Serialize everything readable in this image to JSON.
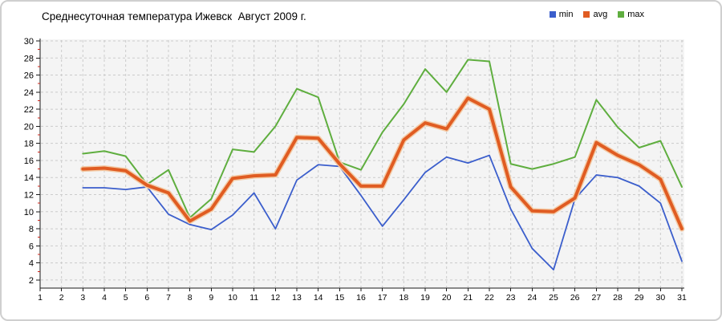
{
  "card": {
    "title": "Среднесуточная температура Ижевск  Август 2009 г."
  },
  "legend": [
    {
      "id": "min",
      "label": "min",
      "color": "#3b5ecc"
    },
    {
      "id": "avg",
      "label": "avg",
      "color": "#e05c22"
    },
    {
      "id": "max",
      "label": "max",
      "color": "#5fae3f"
    }
  ],
  "colors": {
    "plot_background": "#f4f4f4",
    "gridline": "#cbcbcb",
    "axis": "#1a1a1a",
    "minor_tick_red": "#cc2418",
    "avg_halo": "#f3cba6"
  },
  "chart_data": {
    "type": "line",
    "title": "Среднесуточная температура Ижевск  Август 2009 г.",
    "xlabel": "",
    "ylabel": "",
    "x": [
      3,
      4,
      5,
      6,
      7,
      8,
      9,
      10,
      11,
      12,
      13,
      14,
      15,
      16,
      17,
      18,
      19,
      20,
      21,
      22,
      23,
      24,
      25,
      26,
      27,
      28,
      29,
      30,
      31
    ],
    "x_ticks": [
      1,
      2,
      3,
      4,
      5,
      6,
      7,
      8,
      9,
      10,
      11,
      12,
      13,
      14,
      15,
      16,
      17,
      18,
      19,
      20,
      21,
      22,
      23,
      24,
      25,
      26,
      27,
      28,
      29,
      30,
      31
    ],
    "y_ticks": [
      2,
      4,
      6,
      8,
      10,
      12,
      14,
      16,
      18,
      20,
      22,
      24,
      26,
      28,
      30
    ],
    "y_minor_ticks": [
      3,
      5,
      7,
      9,
      11,
      13,
      15,
      17,
      19,
      21,
      23,
      25,
      27,
      29
    ],
    "xlim": [
      1,
      31
    ],
    "ylim": [
      1,
      30
    ],
    "grid": "dashed",
    "legend_position": "top-right",
    "series": [
      {
        "name": "min",
        "color": "#3b5ecc",
        "values": [
          12.8,
          12.8,
          12.6,
          12.9,
          9.7,
          8.5,
          7.9,
          9.6,
          12.2,
          8.0,
          13.7,
          15.5,
          15.3,
          11.9,
          8.3,
          11.4,
          14.6,
          16.4,
          15.7,
          16.6,
          10.3,
          5.7,
          3.2,
          11.5,
          14.3,
          14.0,
          13.0,
          11.0,
          4.2
        ]
      },
      {
        "name": "avg",
        "color": "#e05c22",
        "values": [
          15.0,
          15.1,
          14.8,
          13.1,
          12.2,
          8.9,
          10.3,
          13.9,
          14.2,
          14.3,
          18.7,
          18.6,
          15.6,
          13.0,
          13.0,
          18.4,
          20.4,
          19.7,
          23.3,
          22.0,
          12.9,
          10.1,
          10.0,
          11.6,
          18.1,
          16.6,
          15.5,
          13.8,
          8.0
        ]
      },
      {
        "name": "max",
        "color": "#5fae3f",
        "values": [
          16.8,
          17.1,
          16.5,
          13.2,
          14.9,
          9.3,
          11.5,
          17.3,
          17.0,
          20.0,
          24.4,
          23.4,
          15.8,
          14.9,
          19.3,
          22.6,
          26.7,
          24.0,
          27.8,
          27.6,
          15.6,
          15.0,
          15.6,
          16.4,
          23.1,
          19.9,
          17.5,
          18.3,
          12.9
        ]
      }
    ]
  }
}
